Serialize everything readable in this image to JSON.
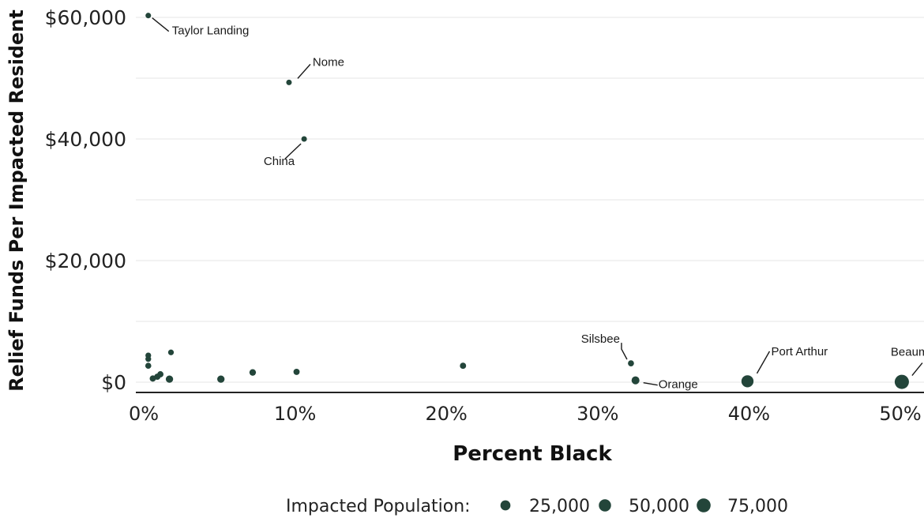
{
  "chart_data": {
    "type": "scatter",
    "title": "",
    "xlabel": "Percent Black",
    "ylabel": "Relief Funds Per Impacted Resident",
    "xlim": [
      0,
      0.5
    ],
    "ylim": [
      0,
      60000
    ],
    "x_ticks": [
      {
        "value": 0,
        "label": "0%"
      },
      {
        "value": 0.1,
        "label": "10%"
      },
      {
        "value": 0.2,
        "label": "20%"
      },
      {
        "value": 0.3,
        "label": "30%"
      },
      {
        "value": 0.4,
        "label": "40%"
      },
      {
        "value": 0.5,
        "label": "50%"
      }
    ],
    "y_ticks": [
      {
        "value": 0,
        "label": "$0"
      },
      {
        "value": 20000,
        "label": "$20,000"
      },
      {
        "value": 40000,
        "label": "$40,000"
      },
      {
        "value": 60000,
        "label": "$60,000"
      }
    ],
    "grid": true,
    "color": "#23453a",
    "points": [
      {
        "x": 0.003,
        "y": 60300,
        "size": 600,
        "label": "Taylor Landing"
      },
      {
        "x": 0.096,
        "y": 49300,
        "size": 600,
        "label": "Nome"
      },
      {
        "x": 0.106,
        "y": 40000,
        "size": 600,
        "label": "China"
      },
      {
        "x": 0.003,
        "y": 4400,
        "size": 900,
        "label": ""
      },
      {
        "x": 0.003,
        "y": 3800,
        "size": 900,
        "label": ""
      },
      {
        "x": 0.003,
        "y": 2700,
        "size": 1500,
        "label": ""
      },
      {
        "x": 0.018,
        "y": 4900,
        "size": 900,
        "label": ""
      },
      {
        "x": 0.006,
        "y": 600,
        "size": 2000,
        "label": ""
      },
      {
        "x": 0.009,
        "y": 900,
        "size": 2000,
        "label": ""
      },
      {
        "x": 0.011,
        "y": 1300,
        "size": 2000,
        "label": ""
      },
      {
        "x": 0.017,
        "y": 500,
        "size": 6000,
        "label": ""
      },
      {
        "x": 0.051,
        "y": 500,
        "size": 6000,
        "label": ""
      },
      {
        "x": 0.072,
        "y": 1600,
        "size": 3000,
        "label": ""
      },
      {
        "x": 0.101,
        "y": 1700,
        "size": 2000,
        "label": ""
      },
      {
        "x": 0.211,
        "y": 2700,
        "size": 2000,
        "label": ""
      },
      {
        "x": 0.322,
        "y": 3100,
        "size": 1500,
        "label": "Silsbee"
      },
      {
        "x": 0.325,
        "y": 300,
        "size": 9000,
        "label": "Orange"
      },
      {
        "x": 0.399,
        "y": 150,
        "size": 48000,
        "label": "Port Arthur"
      },
      {
        "x": 0.501,
        "y": 50,
        "size": 80000,
        "label": "Beaumont"
      }
    ],
    "size_legend": {
      "title": "Impacted Population:",
      "entries": [
        {
          "value": 25000,
          "label": "25,000"
        },
        {
          "value": 50000,
          "label": "50,000"
        },
        {
          "value": 75000,
          "label": "75,000"
        }
      ],
      "placement": "bottom"
    }
  }
}
